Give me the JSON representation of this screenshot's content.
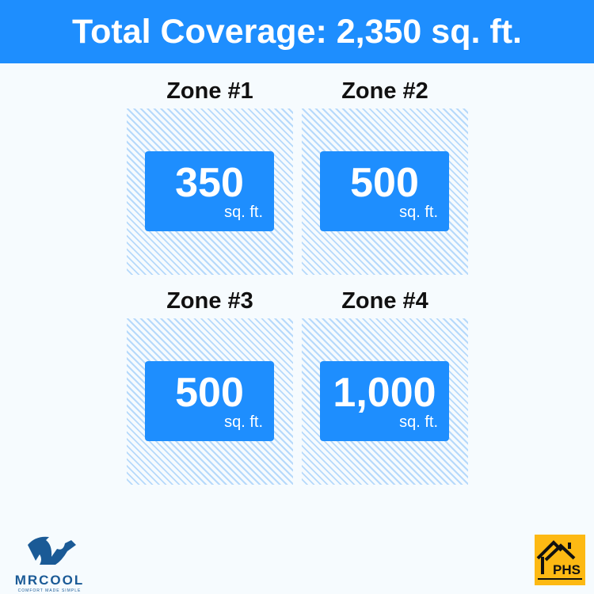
{
  "header": {
    "title": "Total Coverage: 2,350 sq. ft."
  },
  "zones": [
    {
      "title": "Zone #1",
      "value": "350",
      "unit": "sq. ft."
    },
    {
      "title": "Zone #2",
      "value": "500",
      "unit": "sq. ft."
    },
    {
      "title": "Zone #3",
      "value": "500",
      "unit": "sq. ft."
    },
    {
      "title": "Zone #4",
      "value": "1,000",
      "unit": "sq. ft."
    }
  ],
  "logos": {
    "left": {
      "name": "MRCOOL",
      "tagline": "COMFORT MADE SIMPLE"
    },
    "right": {
      "name": "PHS"
    }
  },
  "colors": {
    "accent": "#1e8efe",
    "hatch": "#b6d9fb",
    "phs": "#fdb913",
    "mrcool": "#1a5a96"
  }
}
